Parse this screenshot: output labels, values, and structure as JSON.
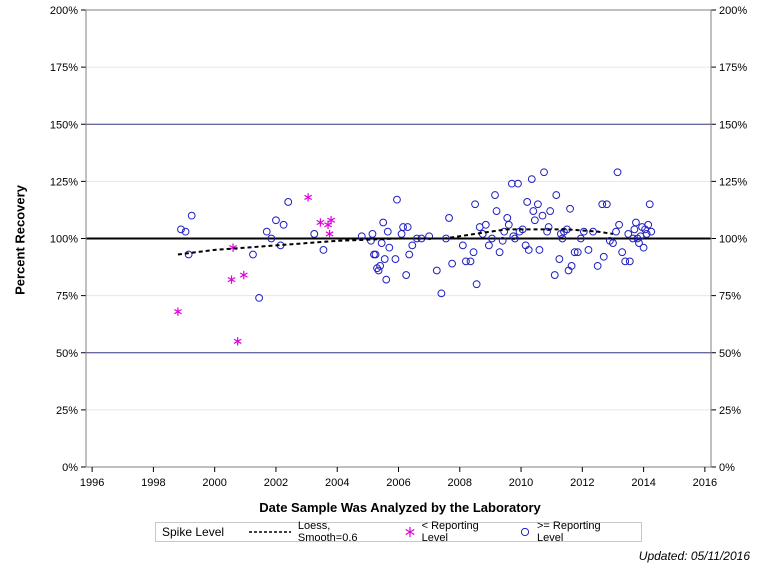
{
  "updated_text": "Updated: 05/11/2016",
  "legend": {
    "title": "Spike Level",
    "loess_label": "Loess, Smooth=0.6",
    "below_label": "< Reporting Level",
    "above_label": ">= Reporting Level"
  },
  "colors": {
    "below": "#e000e0",
    "above": "#2020c0",
    "reference": "#000000",
    "limit_lines": "#3a3a8a",
    "grid": "#e6e6e6",
    "loess": "#000000"
  },
  "chart_data": {
    "type": "scatter",
    "title": "",
    "xlabel": "Date Sample Was Analyzed by the Laboratory",
    "ylabel": "Percent Recovery",
    "xlim": [
      1995.8,
      2016.2
    ],
    "ylim": [
      0,
      200
    ],
    "xticks": [
      1996,
      1998,
      2000,
      2002,
      2004,
      2006,
      2008,
      2010,
      2012,
      2014,
      2016
    ],
    "yticks": [
      0,
      25,
      50,
      75,
      100,
      125,
      150,
      175,
      200
    ],
    "ytick_format": "percent",
    "y2_axis": true,
    "grid": true,
    "reference_line": 100,
    "limit_lines": [
      50,
      150
    ],
    "legend_position": "bottom",
    "series": [
      {
        "name": "< Reporting Level",
        "marker": "asterisk",
        "points": [
          [
            1998.8,
            68
          ],
          [
            2000.55,
            82
          ],
          [
            2000.6,
            96
          ],
          [
            2000.75,
            55
          ],
          [
            2000.95,
            84
          ],
          [
            2003.05,
            118
          ],
          [
            2003.45,
            107
          ],
          [
            2003.7,
            106
          ],
          [
            2003.75,
            102
          ],
          [
            2003.8,
            108
          ]
        ]
      },
      {
        "name": ">= Reporting Level",
        "marker": "circle",
        "points": [
          [
            1998.9,
            104
          ],
          [
            1999.05,
            103
          ],
          [
            1999.15,
            93
          ],
          [
            1999.25,
            110
          ],
          [
            2001.25,
            93
          ],
          [
            2001.45,
            74
          ],
          [
            2001.7,
            103
          ],
          [
            2001.85,
            100
          ],
          [
            2002.0,
            108
          ],
          [
            2002.15,
            97
          ],
          [
            2002.25,
            106
          ],
          [
            2002.4,
            116
          ],
          [
            2003.25,
            102
          ],
          [
            2003.55,
            95
          ],
          [
            2004.8,
            101
          ],
          [
            2005.1,
            99
          ],
          [
            2005.15,
            102
          ],
          [
            2005.2,
            93
          ],
          [
            2005.25,
            93
          ],
          [
            2005.3,
            87
          ],
          [
            2005.35,
            86
          ],
          [
            2005.4,
            88
          ],
          [
            2005.45,
            98
          ],
          [
            2005.5,
            107
          ],
          [
            2005.55,
            91
          ],
          [
            2005.6,
            82
          ],
          [
            2005.65,
            103
          ],
          [
            2005.7,
            96
          ],
          [
            2005.9,
            91
          ],
          [
            2005.95,
            117
          ],
          [
            2006.1,
            102
          ],
          [
            2006.15,
            105
          ],
          [
            2006.25,
            84
          ],
          [
            2006.3,
            105
          ],
          [
            2006.35,
            93
          ],
          [
            2006.45,
            97
          ],
          [
            2006.6,
            100
          ],
          [
            2006.75,
            100
          ],
          [
            2007.0,
            101
          ],
          [
            2007.25,
            86
          ],
          [
            2007.4,
            76
          ],
          [
            2007.55,
            100
          ],
          [
            2007.65,
            109
          ],
          [
            2007.75,
            89
          ],
          [
            2008.1,
            97
          ],
          [
            2008.2,
            90
          ],
          [
            2008.35,
            90
          ],
          [
            2008.45,
            94
          ],
          [
            2008.5,
            115
          ],
          [
            2008.55,
            80
          ],
          [
            2008.65,
            105
          ],
          [
            2008.75,
            102
          ],
          [
            2008.85,
            106
          ],
          [
            2008.95,
            97
          ],
          [
            2009.05,
            100
          ],
          [
            2009.15,
            119
          ],
          [
            2009.2,
            112
          ],
          [
            2009.3,
            94
          ],
          [
            2009.4,
            99
          ],
          [
            2009.45,
            103
          ],
          [
            2009.55,
            109
          ],
          [
            2009.6,
            106
          ],
          [
            2009.7,
            124
          ],
          [
            2009.75,
            101
          ],
          [
            2009.8,
            100
          ],
          [
            2009.9,
            124
          ],
          [
            2009.95,
            103
          ],
          [
            2010.05,
            104
          ],
          [
            2010.15,
            97
          ],
          [
            2010.2,
            116
          ],
          [
            2010.25,
            95
          ],
          [
            2010.35,
            126
          ],
          [
            2010.4,
            112
          ],
          [
            2010.45,
            108
          ],
          [
            2010.55,
            115
          ],
          [
            2010.6,
            95
          ],
          [
            2010.7,
            110
          ],
          [
            2010.75,
            129
          ],
          [
            2010.85,
            103
          ],
          [
            2010.9,
            105
          ],
          [
            2010.95,
            112
          ],
          [
            2011.1,
            84
          ],
          [
            2011.15,
            119
          ],
          [
            2011.25,
            91
          ],
          [
            2011.3,
            102
          ],
          [
            2011.35,
            100
          ],
          [
            2011.4,
            103
          ],
          [
            2011.5,
            104
          ],
          [
            2011.55,
            86
          ],
          [
            2011.6,
            113
          ],
          [
            2011.65,
            88
          ],
          [
            2011.75,
            94
          ],
          [
            2011.85,
            94
          ],
          [
            2011.95,
            100
          ],
          [
            2012.05,
            103
          ],
          [
            2012.2,
            95
          ],
          [
            2012.35,
            103
          ],
          [
            2012.5,
            88
          ],
          [
            2012.65,
            115
          ],
          [
            2012.7,
            92
          ],
          [
            2012.8,
            115
          ],
          [
            2012.9,
            99
          ],
          [
            2013.0,
            98
          ],
          [
            2013.1,
            103
          ],
          [
            2013.15,
            129
          ],
          [
            2013.2,
            106
          ],
          [
            2013.3,
            94
          ],
          [
            2013.4,
            90
          ],
          [
            2013.5,
            102
          ],
          [
            2013.55,
            90
          ],
          [
            2013.65,
            100
          ],
          [
            2013.7,
            104
          ],
          [
            2013.75,
            107
          ],
          [
            2013.8,
            100
          ],
          [
            2013.85,
            98
          ],
          [
            2013.9,
            101
          ],
          [
            2013.95,
            105
          ],
          [
            2014.0,
            96
          ],
          [
            2014.05,
            104
          ],
          [
            2014.1,
            102
          ],
          [
            2014.15,
            106
          ],
          [
            2014.2,
            115
          ],
          [
            2014.25,
            103
          ]
        ]
      },
      {
        "name": "Loess, Smooth=0.6",
        "marker": "dashed-line",
        "points": [
          [
            1998.8,
            93
          ],
          [
            2000.0,
            95
          ],
          [
            2002.0,
            97
          ],
          [
            2004.0,
            99
          ],
          [
            2006.0,
            100
          ],
          [
            2007.5,
            100
          ],
          [
            2008.5,
            102
          ],
          [
            2009.5,
            104
          ],
          [
            2010.5,
            104
          ],
          [
            2011.5,
            104
          ],
          [
            2012.5,
            103
          ],
          [
            2013.0,
            102
          ]
        ]
      }
    ]
  }
}
